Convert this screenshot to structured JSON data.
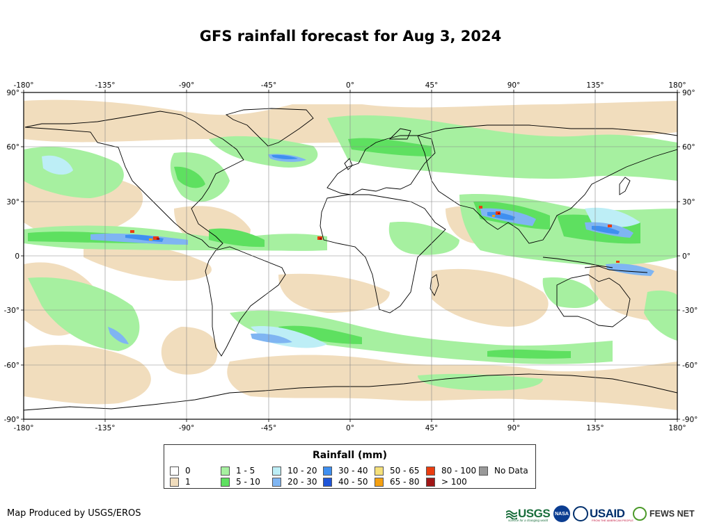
{
  "title": "GFS rainfall forecast for Aug 3, 2024",
  "map": {
    "longitude_ticks": [
      "-180°",
      "-135°",
      "-90°",
      "-45°",
      "0°",
      "45°",
      "90°",
      "135°",
      "180°"
    ],
    "latitude_ticks": [
      "90°",
      "60°",
      "30°",
      "0",
      "-30°",
      "-60°",
      "-90°"
    ],
    "latitude_ticks_right": [
      "90°",
      "60°",
      "30°",
      "0°",
      "-30°",
      "-60°",
      "-90°"
    ]
  },
  "legend": {
    "title": "Rainfall (mm)",
    "items": [
      {
        "label": "0",
        "color": "#ffffff"
      },
      {
        "label": "1",
        "color": "#f1ddbd"
      },
      {
        "label": "1 - 5",
        "color": "#a6f0a0"
      },
      {
        "label": "5 - 10",
        "color": "#5ee060"
      },
      {
        "label": "10 - 20",
        "color": "#bdeef6"
      },
      {
        "label": "20 - 30",
        "color": "#7fb5f2"
      },
      {
        "label": "30 - 40",
        "color": "#3f8ff0"
      },
      {
        "label": "40 - 50",
        "color": "#1e55d8"
      },
      {
        "label": "50 - 65",
        "color": "#f5e07a"
      },
      {
        "label": "65 - 80",
        "color": "#f5a010"
      },
      {
        "label": "80 - 100",
        "color": "#ea3d10"
      },
      {
        "label": "> 100",
        "color": "#a01616"
      },
      {
        "label": "No Data",
        "color": "#999999"
      }
    ]
  },
  "credit": "Map Produced by USGS/EROS",
  "logos": {
    "usgs": "USGS",
    "usgs_tagline": "science for a changing world",
    "nasa": "NASA",
    "usaid": "USAID",
    "usaid_tagline": "FROM THE AMERICAN PEOPLE",
    "fews": "FEWS NET"
  }
}
